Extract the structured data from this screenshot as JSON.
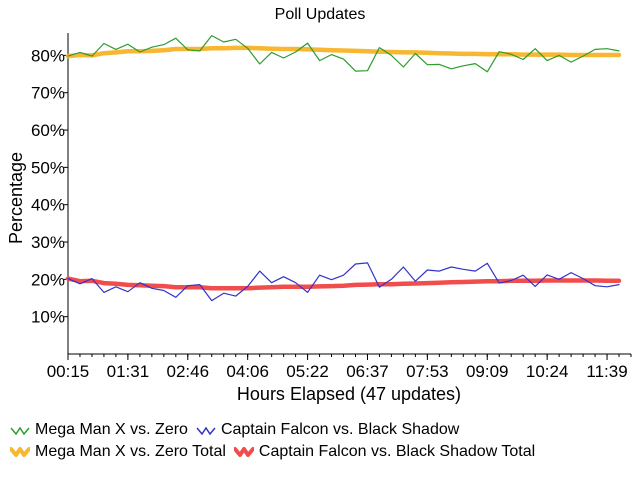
{
  "chart_data": {
    "type": "line",
    "title": "Poll Updates",
    "xlabel": "Hours Elapsed (47 updates)",
    "ylabel": "Percentage",
    "x_tick_labels": [
      "00:15",
      "01:31",
      "02:46",
      "04:06",
      "05:22",
      "06:37",
      "07:53",
      "09:09",
      "10:24",
      "11:39"
    ],
    "x_tick_update_index": [
      0,
      4,
      8,
      12,
      16,
      20,
      24,
      28,
      32,
      36
    ],
    "x_count": 47,
    "y_tick_labels": [
      "10%",
      "20%",
      "30%",
      "40%",
      "50%",
      "60%",
      "70%",
      "80%"
    ],
    "y_ticks": [
      10,
      20,
      30,
      40,
      50,
      60,
      70,
      80
    ],
    "ylim": [
      0,
      86
    ],
    "grid": false,
    "legend_placement": "bottom",
    "series": [
      {
        "name": "Mega Man X vs. Zero",
        "color": "#2e9c2e",
        "style": "thin",
        "values": [
          79.8,
          80.8,
          79.8,
          83.2,
          81.6,
          83.0,
          80.9,
          82.2,
          82.9,
          84.6,
          81.5,
          81.2,
          85.3,
          83.6,
          84.3,
          81.9,
          77.7,
          80.8,
          79.3,
          80.9,
          83.3,
          78.6,
          80.2,
          79.0,
          75.8,
          75.9,
          82.1,
          80.0,
          76.9,
          80.5,
          77.5,
          77.6,
          76.4,
          77.2,
          77.8,
          75.6,
          81.0,
          80.3,
          78.9,
          81.8,
          78.6,
          80.0,
          78.2,
          79.8,
          81.6,
          81.8,
          81.2
        ]
      },
      {
        "name": "Captain Falcon vs. Black Shadow",
        "color": "#3333cc",
        "style": "thin",
        "values": [
          20.2,
          18.8,
          20.2,
          16.5,
          18.0,
          16.7,
          19.1,
          17.6,
          17.0,
          15.2,
          18.3,
          18.6,
          14.3,
          16.3,
          15.5,
          18.1,
          22.2,
          19.1,
          20.7,
          19.1,
          16.5,
          21.1,
          19.9,
          21.1,
          24.1,
          24.4,
          17.9,
          20.0,
          23.3,
          19.5,
          22.5,
          22.2,
          23.3,
          22.7,
          22.2,
          24.3,
          19.0,
          19.7,
          21.1,
          18.1,
          21.2,
          20.0,
          21.8,
          20.2,
          18.3,
          18.0,
          18.6
        ]
      },
      {
        "name": "Mega Man X vs. Zero Total",
        "color": "#f7b731",
        "style": "thick",
        "values": [
          79.8,
          80.1,
          80.0,
          80.6,
          80.8,
          81.1,
          81.1,
          81.2,
          81.4,
          81.7,
          81.7,
          81.7,
          81.9,
          81.9,
          82.0,
          82.0,
          81.9,
          81.8,
          81.7,
          81.7,
          81.6,
          81.5,
          81.4,
          81.3,
          81.2,
          81.1,
          81.0,
          80.9,
          80.8,
          80.8,
          80.7,
          80.6,
          80.5,
          80.4,
          80.4,
          80.3,
          80.3,
          80.3,
          80.2,
          80.2,
          80.2,
          80.2,
          80.1,
          80.1,
          80.1,
          80.1,
          80.1
        ]
      },
      {
        "name": "Captain Falcon vs. Black Shadow Total",
        "color": "#f24d4d",
        "style": "thick",
        "values": [
          20.2,
          19.5,
          19.6,
          19.0,
          18.8,
          18.5,
          18.4,
          18.3,
          18.2,
          17.9,
          17.9,
          17.9,
          17.6,
          17.6,
          17.6,
          17.6,
          17.8,
          17.9,
          18.0,
          18.0,
          18.0,
          18.1,
          18.2,
          18.3,
          18.5,
          18.6,
          18.7,
          18.7,
          18.8,
          18.9,
          19.0,
          19.1,
          19.2,
          19.3,
          19.4,
          19.5,
          19.5,
          19.6,
          19.6,
          19.6,
          19.7,
          19.7,
          19.7,
          19.7,
          19.7,
          19.6,
          19.6
        ]
      }
    ]
  },
  "legend": {
    "items": [
      {
        "label": "Mega Man X vs. Zero",
        "color": "#2e9c2e",
        "icon": "thin-zigzag-line-icon"
      },
      {
        "label": "Captain Falcon vs. Black Shadow",
        "color": "#3333cc",
        "icon": "thin-zigzag-line-icon"
      },
      {
        "label": "Mega Man X vs. Zero Total",
        "color": "#f7b731",
        "icon": "thick-zigzag-line-icon"
      },
      {
        "label": "Captain Falcon vs. Black Shadow Total",
        "color": "#f24d4d",
        "icon": "thick-zigzag-line-icon"
      }
    ]
  }
}
